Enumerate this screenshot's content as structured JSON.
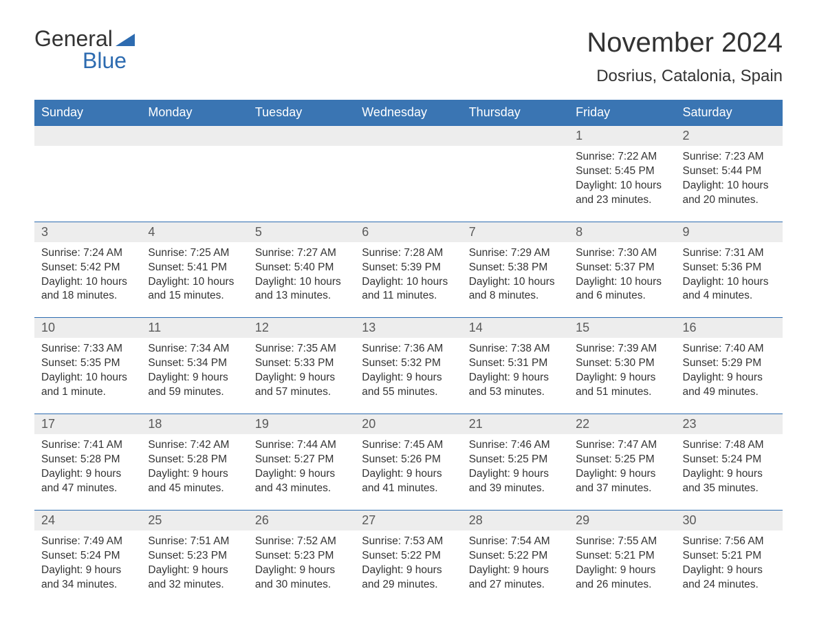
{
  "logo": {
    "text_general": "General",
    "text_blue": "Blue"
  },
  "colors": {
    "header_bg": "#3a75b3",
    "header_text": "#ffffff",
    "daynum_bg": "#ededed",
    "daynum_border": "#2d6bb0",
    "daynum_text": "#595959",
    "body_text": "#333333",
    "brand_blue": "#2d6bb0",
    "page_bg": "#ffffff"
  },
  "title": "November 2024",
  "location": "Dosrius, Catalonia, Spain",
  "weekdays": [
    "Sunday",
    "Monday",
    "Tuesday",
    "Wednesday",
    "Thursday",
    "Friday",
    "Saturday"
  ],
  "weeks": [
    [
      null,
      null,
      null,
      null,
      null,
      {
        "n": "1",
        "sr": "Sunrise: 7:22 AM",
        "ss": "Sunset: 5:45 PM",
        "d1": "Daylight: 10 hours",
        "d2": "and 23 minutes."
      },
      {
        "n": "2",
        "sr": "Sunrise: 7:23 AM",
        "ss": "Sunset: 5:44 PM",
        "d1": "Daylight: 10 hours",
        "d2": "and 20 minutes."
      }
    ],
    [
      {
        "n": "3",
        "sr": "Sunrise: 7:24 AM",
        "ss": "Sunset: 5:42 PM",
        "d1": "Daylight: 10 hours",
        "d2": "and 18 minutes."
      },
      {
        "n": "4",
        "sr": "Sunrise: 7:25 AM",
        "ss": "Sunset: 5:41 PM",
        "d1": "Daylight: 10 hours",
        "d2": "and 15 minutes."
      },
      {
        "n": "5",
        "sr": "Sunrise: 7:27 AM",
        "ss": "Sunset: 5:40 PM",
        "d1": "Daylight: 10 hours",
        "d2": "and 13 minutes."
      },
      {
        "n": "6",
        "sr": "Sunrise: 7:28 AM",
        "ss": "Sunset: 5:39 PM",
        "d1": "Daylight: 10 hours",
        "d2": "and 11 minutes."
      },
      {
        "n": "7",
        "sr": "Sunrise: 7:29 AM",
        "ss": "Sunset: 5:38 PM",
        "d1": "Daylight: 10 hours",
        "d2": "and 8 minutes."
      },
      {
        "n": "8",
        "sr": "Sunrise: 7:30 AM",
        "ss": "Sunset: 5:37 PM",
        "d1": "Daylight: 10 hours",
        "d2": "and 6 minutes."
      },
      {
        "n": "9",
        "sr": "Sunrise: 7:31 AM",
        "ss": "Sunset: 5:36 PM",
        "d1": "Daylight: 10 hours",
        "d2": "and 4 minutes."
      }
    ],
    [
      {
        "n": "10",
        "sr": "Sunrise: 7:33 AM",
        "ss": "Sunset: 5:35 PM",
        "d1": "Daylight: 10 hours",
        "d2": "and 1 minute."
      },
      {
        "n": "11",
        "sr": "Sunrise: 7:34 AM",
        "ss": "Sunset: 5:34 PM",
        "d1": "Daylight: 9 hours",
        "d2": "and 59 minutes."
      },
      {
        "n": "12",
        "sr": "Sunrise: 7:35 AM",
        "ss": "Sunset: 5:33 PM",
        "d1": "Daylight: 9 hours",
        "d2": "and 57 minutes."
      },
      {
        "n": "13",
        "sr": "Sunrise: 7:36 AM",
        "ss": "Sunset: 5:32 PM",
        "d1": "Daylight: 9 hours",
        "d2": "and 55 minutes."
      },
      {
        "n": "14",
        "sr": "Sunrise: 7:38 AM",
        "ss": "Sunset: 5:31 PM",
        "d1": "Daylight: 9 hours",
        "d2": "and 53 minutes."
      },
      {
        "n": "15",
        "sr": "Sunrise: 7:39 AM",
        "ss": "Sunset: 5:30 PM",
        "d1": "Daylight: 9 hours",
        "d2": "and 51 minutes."
      },
      {
        "n": "16",
        "sr": "Sunrise: 7:40 AM",
        "ss": "Sunset: 5:29 PM",
        "d1": "Daylight: 9 hours",
        "d2": "and 49 minutes."
      }
    ],
    [
      {
        "n": "17",
        "sr": "Sunrise: 7:41 AM",
        "ss": "Sunset: 5:28 PM",
        "d1": "Daylight: 9 hours",
        "d2": "and 47 minutes."
      },
      {
        "n": "18",
        "sr": "Sunrise: 7:42 AM",
        "ss": "Sunset: 5:28 PM",
        "d1": "Daylight: 9 hours",
        "d2": "and 45 minutes."
      },
      {
        "n": "19",
        "sr": "Sunrise: 7:44 AM",
        "ss": "Sunset: 5:27 PM",
        "d1": "Daylight: 9 hours",
        "d2": "and 43 minutes."
      },
      {
        "n": "20",
        "sr": "Sunrise: 7:45 AM",
        "ss": "Sunset: 5:26 PM",
        "d1": "Daylight: 9 hours",
        "d2": "and 41 minutes."
      },
      {
        "n": "21",
        "sr": "Sunrise: 7:46 AM",
        "ss": "Sunset: 5:25 PM",
        "d1": "Daylight: 9 hours",
        "d2": "and 39 minutes."
      },
      {
        "n": "22",
        "sr": "Sunrise: 7:47 AM",
        "ss": "Sunset: 5:25 PM",
        "d1": "Daylight: 9 hours",
        "d2": "and 37 minutes."
      },
      {
        "n": "23",
        "sr": "Sunrise: 7:48 AM",
        "ss": "Sunset: 5:24 PM",
        "d1": "Daylight: 9 hours",
        "d2": "and 35 minutes."
      }
    ],
    [
      {
        "n": "24",
        "sr": "Sunrise: 7:49 AM",
        "ss": "Sunset: 5:24 PM",
        "d1": "Daylight: 9 hours",
        "d2": "and 34 minutes."
      },
      {
        "n": "25",
        "sr": "Sunrise: 7:51 AM",
        "ss": "Sunset: 5:23 PM",
        "d1": "Daylight: 9 hours",
        "d2": "and 32 minutes."
      },
      {
        "n": "26",
        "sr": "Sunrise: 7:52 AM",
        "ss": "Sunset: 5:23 PM",
        "d1": "Daylight: 9 hours",
        "d2": "and 30 minutes."
      },
      {
        "n": "27",
        "sr": "Sunrise: 7:53 AM",
        "ss": "Sunset: 5:22 PM",
        "d1": "Daylight: 9 hours",
        "d2": "and 29 minutes."
      },
      {
        "n": "28",
        "sr": "Sunrise: 7:54 AM",
        "ss": "Sunset: 5:22 PM",
        "d1": "Daylight: 9 hours",
        "d2": "and 27 minutes."
      },
      {
        "n": "29",
        "sr": "Sunrise: 7:55 AM",
        "ss": "Sunset: 5:21 PM",
        "d1": "Daylight: 9 hours",
        "d2": "and 26 minutes."
      },
      {
        "n": "30",
        "sr": "Sunrise: 7:56 AM",
        "ss": "Sunset: 5:21 PM",
        "d1": "Daylight: 9 hours",
        "d2": "and 24 minutes."
      }
    ]
  ]
}
